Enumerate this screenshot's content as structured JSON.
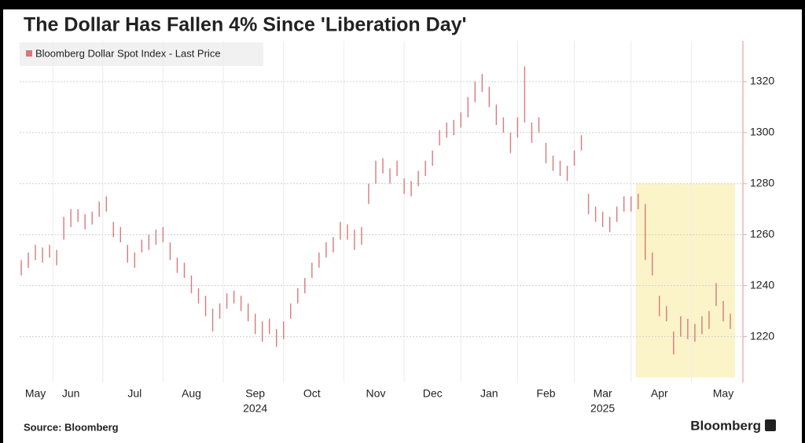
{
  "chart_data": {
    "type": "hilo",
    "title": "The Dollar Has Fallen 4% Since 'Liberation Day'",
    "source": "Source: Bloomberg",
    "brand": "Bloomberg",
    "categories": [
      null,
      null,
      "May",
      null,
      null,
      null,
      null,
      "Jun",
      null,
      null,
      null,
      null,
      null,
      null,
      null,
      null,
      "Jul",
      null,
      null,
      null,
      null,
      null,
      null,
      null,
      "Aug",
      null,
      null,
      null,
      null,
      null,
      null,
      null,
      null,
      "Sep",
      null,
      null,
      null,
      null,
      null,
      null,
      null,
      "Oct",
      null,
      null,
      null,
      null,
      null,
      null,
      null,
      null,
      "Nov",
      null,
      null,
      null,
      null,
      null,
      null,
      null,
      "Dec",
      null,
      null,
      null,
      null,
      null,
      null,
      null,
      "Jan",
      null,
      null,
      null,
      null,
      null,
      null,
      null,
      "Feb",
      null,
      null,
      null,
      null,
      null,
      null,
      null,
      "Mar",
      null,
      null,
      null,
      null,
      null,
      null,
      null,
      "Apr",
      null,
      null,
      null,
      null,
      null,
      null,
      null,
      null,
      "May",
      null
    ],
    "year_categories": [
      null,
      null,
      null,
      null,
      null,
      null,
      null,
      null,
      null,
      null,
      null,
      null,
      null,
      null,
      null,
      null,
      null,
      null,
      null,
      null,
      null,
      null,
      null,
      null,
      null,
      null,
      null,
      null,
      null,
      null,
      null,
      null,
      null,
      "2024",
      null,
      null,
      null,
      null,
      null,
      null,
      null,
      null,
      null,
      null,
      null,
      null,
      null,
      null,
      null,
      null,
      null,
      null,
      null,
      null,
      null,
      null,
      null,
      null,
      null,
      null,
      null,
      null,
      null,
      null,
      null,
      null,
      null,
      null,
      null,
      null,
      null,
      null,
      null,
      null,
      null,
      null,
      null,
      null,
      null,
      null,
      null,
      null,
      "2025",
      null,
      null,
      null,
      null,
      null,
      null,
      null,
      null,
      null,
      null,
      null,
      null,
      null,
      null,
      null,
      null,
      null,
      null
    ],
    "series": [
      {
        "name": "Bloomberg Dollar Spot Index - Last Price",
        "color": "#d9797b",
        "high": [
          1250,
          1253,
          1256,
          1255,
          1256,
          1254,
          1267,
          1270,
          1270,
          1268,
          1269,
          1273,
          1275,
          1265,
          1263,
          1256,
          1253,
          1258,
          1260,
          1262,
          1263,
          1257,
          1251,
          1249,
          1244,
          1239,
          1236,
          1231,
          1233,
          1237,
          1238,
          1236,
          1233,
          1229,
          1226,
          1227,
          1223,
          1226,
          1233,
          1239,
          1243,
          1249,
          1253,
          1257,
          1259,
          1265,
          1264,
          1262,
          1263,
          1280,
          1289,
          1290,
          1286,
          1289,
          1282,
          1281,
          1285,
          1289,
          1293,
          1301,
          1304,
          1305,
          1308,
          1314,
          1320,
          1323,
          1318,
          1311,
          1306,
          1300,
          1306,
          1326,
          1304,
          1306,
          1296,
          1291,
          1289,
          1287,
          1293,
          1299,
          1276,
          1271,
          1269,
          1267,
          1271,
          1275,
          1275,
          1276,
          1272,
          1253,
          1236,
          1232,
          1222,
          1228,
          1227,
          1225,
          1228,
          1230,
          1241,
          1234,
          1229
        ],
        "low": [
          1244,
          1247,
          1250,
          1249,
          1251,
          1248,
          1258,
          1263,
          1265,
          1262,
          1264,
          1267,
          1269,
          1259,
          1257,
          1249,
          1247,
          1253,
          1254,
          1256,
          1257,
          1250,
          1245,
          1243,
          1237,
          1233,
          1228,
          1222,
          1227,
          1231,
          1233,
          1230,
          1226,
          1221,
          1218,
          1221,
          1216,
          1219,
          1227,
          1233,
          1237,
          1243,
          1247,
          1251,
          1253,
          1258,
          1258,
          1254,
          1256,
          1272,
          1280,
          1284,
          1280,
          1283,
          1276,
          1275,
          1279,
          1283,
          1287,
          1295,
          1298,
          1299,
          1302,
          1306,
          1312,
          1316,
          1310,
          1303,
          1300,
          1292,
          1298,
          1304,
          1296,
          1300,
          1288,
          1285,
          1283,
          1281,
          1287,
          1293,
          1268,
          1265,
          1263,
          1261,
          1265,
          1269,
          1269,
          1270,
          1250,
          1244,
          1228,
          1226,
          1213,
          1220,
          1219,
          1218,
          1221,
          1223,
          1232,
          1226,
          1223
        ]
      }
    ],
    "highlight": {
      "from": 87,
      "ylim": [
        1204,
        1280
      ],
      "color": "#fbf4c8"
    },
    "ylim": [
      1202,
      1336
    ],
    "yticks": [
      1220,
      1240,
      1260,
      1280,
      1300,
      1320
    ],
    "y_axis_side": "right",
    "grid": true
  }
}
